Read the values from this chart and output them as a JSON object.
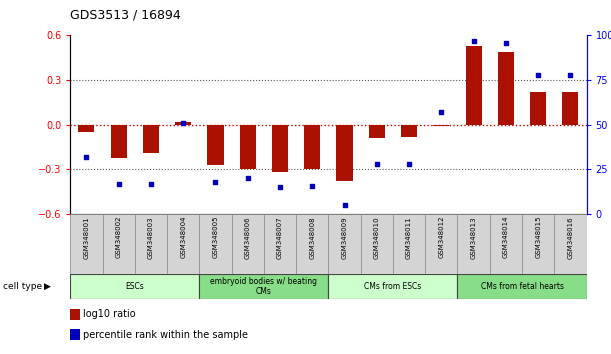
{
  "title": "GDS3513 / 16894",
  "samples": [
    "GSM348001",
    "GSM348002",
    "GSM348003",
    "GSM348004",
    "GSM348005",
    "GSM348006",
    "GSM348007",
    "GSM348008",
    "GSM348009",
    "GSM348010",
    "GSM348011",
    "GSM348012",
    "GSM348013",
    "GSM348014",
    "GSM348015",
    "GSM348016"
  ],
  "log10_ratio": [
    -0.05,
    -0.22,
    -0.19,
    0.02,
    -0.27,
    -0.3,
    -0.32,
    -0.3,
    -0.38,
    -0.09,
    -0.08,
    -0.01,
    0.53,
    0.49,
    0.22,
    0.22
  ],
  "percentile_rank": [
    32,
    17,
    17,
    51,
    18,
    20,
    15,
    16,
    5,
    28,
    28,
    57,
    97,
    96,
    78,
    78
  ],
  "cell_type_groups": [
    {
      "label": "ESCs",
      "start": 0,
      "end": 3,
      "color": "#ccffcc"
    },
    {
      "label": "embryoid bodies w/ beating\nCMs",
      "start": 4,
      "end": 7,
      "color": "#88dd88"
    },
    {
      "label": "CMs from ESCs",
      "start": 8,
      "end": 11,
      "color": "#ccffcc"
    },
    {
      "label": "CMs from fetal hearts",
      "start": 12,
      "end": 15,
      "color": "#88dd88"
    }
  ],
  "ylim_left": [
    -0.6,
    0.6
  ],
  "ylim_right": [
    0,
    100
  ],
  "bar_color": "#aa1100",
  "dot_color": "#0000bb",
  "zero_line_color": "#cc0000",
  "dotted_line_color": "#555555",
  "background_color": "#ffffff",
  "left_yticks": [
    -0.6,
    -0.3,
    0.0,
    0.3,
    0.6
  ],
  "right_yticks": [
    0,
    25,
    50,
    75,
    100
  ],
  "cell_type_label": "cell type",
  "legend_items": [
    {
      "color": "#aa1100",
      "label": "log10 ratio"
    },
    {
      "color": "#0000bb",
      "label": "percentile rank within the sample"
    }
  ]
}
